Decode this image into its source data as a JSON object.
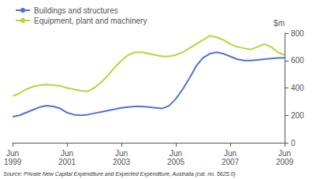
{
  "chart_data": {
    "type": "line",
    "ylabel": "$m",
    "source": "Source: Private New Capital Expenditure and Expected Expenditure, Australia (cat. no. 5625.0)",
    "categories": [
      "Jun\n1999",
      null,
      null,
      null,
      null,
      null,
      null,
      null,
      "Jun\n2001",
      null,
      null,
      null,
      null,
      null,
      null,
      null,
      "Jun\n2003",
      null,
      null,
      null,
      null,
      null,
      null,
      null,
      "Jun\n2005",
      null,
      null,
      null,
      null,
      null,
      null,
      null,
      "Jun\n2007",
      null,
      null,
      null,
      null,
      null,
      null,
      null,
      "Jun\n2009"
    ],
    "series": [
      {
        "name": "Buildings and structures",
        "values": [
          190,
          200,
          220,
          240,
          260,
          270,
          265,
          250,
          220,
          205,
          200,
          205,
          215,
          225,
          235,
          245,
          255,
          260,
          265,
          265,
          260,
          255,
          250,
          270,
          320,
          390,
          470,
          560,
          620,
          650,
          660,
          650,
          630,
          610,
          600,
          600,
          605,
          610,
          615,
          618,
          620
        ]
      },
      {
        "name": "Equipment, plant and machinery",
        "values": [
          340,
          360,
          390,
          410,
          420,
          425,
          420,
          415,
          400,
          390,
          380,
          375,
          400,
          440,
          490,
          550,
          600,
          640,
          660,
          660,
          650,
          640,
          630,
          630,
          640,
          660,
          690,
          720,
          750,
          780,
          770,
          750,
          720,
          700,
          690,
          680,
          700,
          720,
          700,
          660,
          640
        ]
      }
    ],
    "ylim": [
      0,
      800
    ],
    "yticks": [
      0,
      200,
      400,
      600,
      800
    ],
    "grid": false,
    "legend": "upper left"
  }
}
